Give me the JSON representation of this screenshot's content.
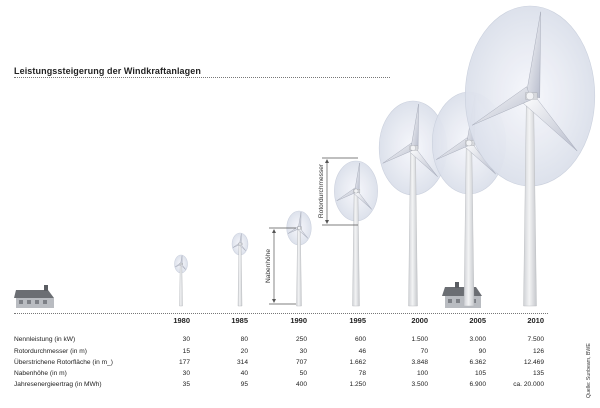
{
  "title": "Leistungssteigerung der Windkraftanlagen",
  "labels": {
    "hub_height": "Nabenhöhe",
    "rotor_diameter": "Rotordurchmesser"
  },
  "source": "Quelle: Sunbeam, BWE",
  "years": [
    "1980",
    "1985",
    "1990",
    "1995",
    "2000",
    "2005",
    "2010"
  ],
  "rows": [
    {
      "label": "Nennleistung (in kW)",
      "values": [
        "30",
        "80",
        "250",
        "600",
        "1.500",
        "3.000",
        "7.500"
      ]
    },
    {
      "label": "Rotordurchmesser (in m)",
      "values": [
        "15",
        "20",
        "30",
        "46",
        "70",
        "90",
        "126"
      ]
    },
    {
      "label": "Überstrichene Rotorfläche (in m_)",
      "values": [
        "177",
        "314",
        "707",
        "1.662",
        "3.848",
        "6.362",
        "12.469"
      ]
    },
    {
      "label": "Nabenhöhe (in m)",
      "values": [
        "30",
        "40",
        "50",
        "78",
        "100",
        "105",
        "135"
      ]
    },
    {
      "label": "Jahresenergieertrag (in MWh)",
      "values": [
        "35",
        "95",
        "400",
        "1.250",
        "3.500",
        "6.900",
        "ca. 20.000"
      ]
    }
  ],
  "colors": {
    "rotor_disc": "#e2e7f1",
    "tower": "#e9eaec",
    "house_roof": "#6b6e73",
    "house_wall": "#b9bcc1"
  }
}
